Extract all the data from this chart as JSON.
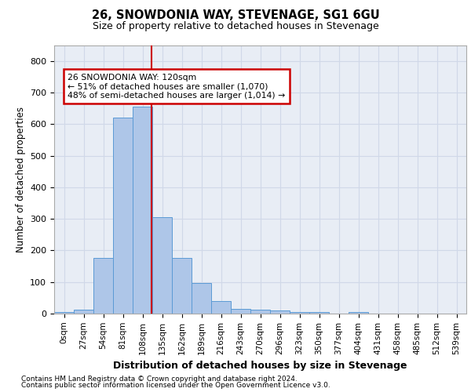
{
  "title1": "26, SNOWDONIA WAY, STEVENAGE, SG1 6GU",
  "title2": "Size of property relative to detached houses in Stevenage",
  "xlabel": "Distribution of detached houses by size in Stevenage",
  "ylabel": "Number of detached properties",
  "bin_labels": [
    "0sqm",
    "27sqm",
    "54sqm",
    "81sqm",
    "108sqm",
    "135sqm",
    "162sqm",
    "189sqm",
    "216sqm",
    "243sqm",
    "270sqm",
    "296sqm",
    "323sqm",
    "350sqm",
    "377sqm",
    "404sqm",
    "431sqm",
    "458sqm",
    "485sqm",
    "512sqm",
    "539sqm"
  ],
  "bar_values": [
    5,
    13,
    175,
    620,
    655,
    305,
    175,
    98,
    40,
    14,
    12,
    10,
    5,
    5,
    0,
    5,
    0,
    0,
    0,
    0,
    0
  ],
  "bar_color": "#aec6e8",
  "bar_edge_color": "#5b9bd5",
  "vline_color": "#cc0000",
  "annotation_line1": "26 SNOWDONIA WAY: 120sqm",
  "annotation_line2": "← 51% of detached houses are smaller (1,070)",
  "annotation_line3": "48% of semi-detached houses are larger (1,014) →",
  "annotation_box_color": "#ffffff",
  "annotation_box_edge": "#cc0000",
  "ylim": [
    0,
    850
  ],
  "yticks": [
    0,
    100,
    200,
    300,
    400,
    500,
    600,
    700,
    800
  ],
  "grid_color": "#d0d8e8",
  "bg_color": "#e8edf5",
  "footer1": "Contains HM Land Registry data © Crown copyright and database right 2024.",
  "footer2": "Contains public sector information licensed under the Open Government Licence v3.0."
}
